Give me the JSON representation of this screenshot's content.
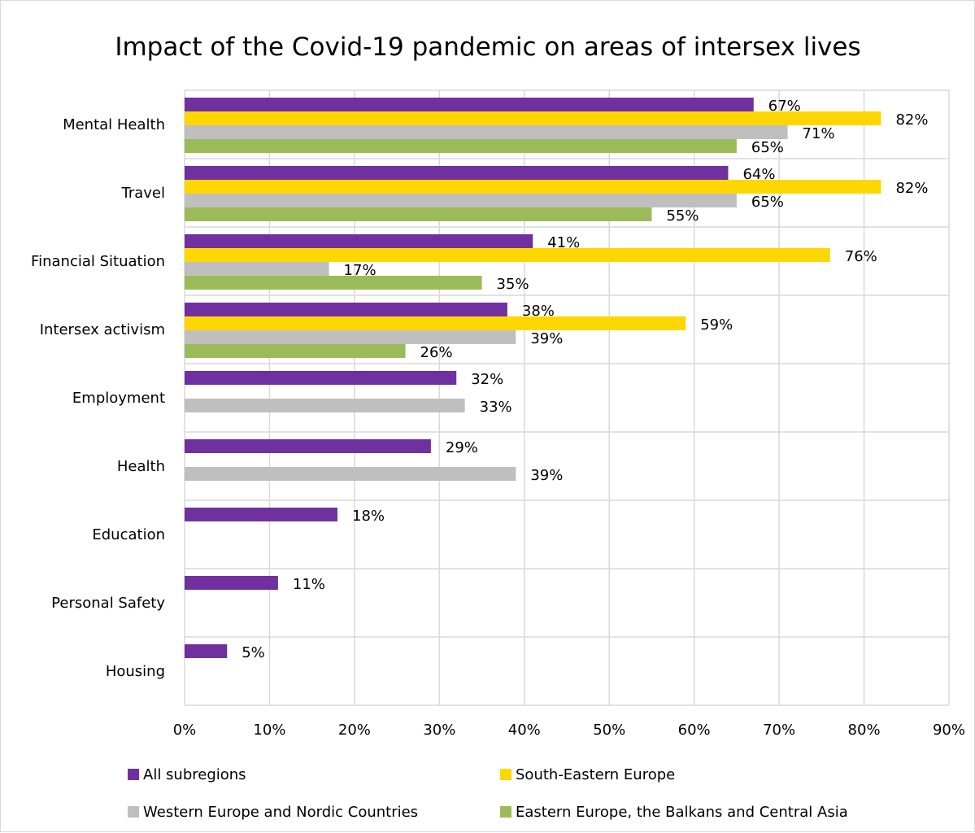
{
  "chart_data": {
    "type": "bar",
    "orientation": "horizontal",
    "title": "Impact of the Covid-19 pandemic on areas of intersex lives",
    "categories": [
      "Mental Health",
      "Travel",
      "Financial Situation",
      "Intersex activism",
      "Employment",
      "Health",
      "Education",
      "Personal Safety",
      "Housing"
    ],
    "series": [
      {
        "name": "All subregions",
        "color": "#7030a0",
        "values": [
          67,
          64,
          41,
          38,
          32,
          29,
          18,
          11,
          5
        ],
        "labels": [
          "67%",
          "64%",
          "41%",
          "38%",
          "32%",
          "29%",
          "18%",
          "11%",
          "5%"
        ]
      },
      {
        "name": "South-Eastern Europe",
        "color": "#ffd700",
        "values": [
          82,
          82,
          76,
          59,
          null,
          null,
          null,
          null,
          null
        ],
        "labels": [
          "82%",
          "82%",
          "76%",
          "59%",
          null,
          null,
          null,
          null,
          null
        ]
      },
      {
        "name": "Western Europe and Nordic Countries",
        "color": "#bfbfbf",
        "values": [
          71,
          65,
          17,
          39,
          33,
          39,
          null,
          null,
          null
        ],
        "labels": [
          "71%",
          "65%",
          "17%",
          "39%",
          "33%",
          "39%",
          null,
          null,
          null
        ]
      },
      {
        "name": "Eastern Europe, the Balkans and Central Asia",
        "color": "#9bbb59",
        "values": [
          65,
          55,
          35,
          26,
          null,
          null,
          null,
          null,
          null
        ],
        "labels": [
          "65%",
          "55%",
          "35%",
          "26%",
          null,
          null,
          null,
          null,
          null
        ]
      }
    ],
    "xlim": [
      0,
      90
    ],
    "x_ticks": [
      0,
      10,
      20,
      30,
      40,
      50,
      60,
      70,
      80,
      90
    ],
    "x_tick_labels": [
      "0%",
      "10%",
      "20%",
      "30%",
      "40%",
      "50%",
      "60%",
      "70%",
      "80%",
      "90%"
    ],
    "xlabel": "",
    "ylabel": "",
    "grid": true,
    "legend_position": "bottom"
  }
}
